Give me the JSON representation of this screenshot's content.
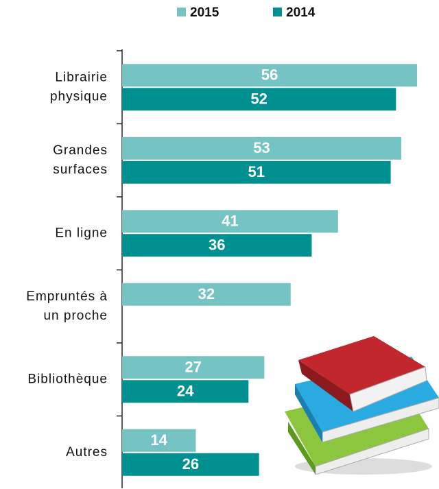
{
  "chart_data": {
    "type": "barh",
    "categories": [
      "Librairie\nphysique",
      "Grandes\nsurfaces",
      "En ligne",
      "Empruntés à\nun proche",
      "Bibliothèque",
      "Autres"
    ],
    "series": [
      {
        "name": "2015",
        "color": "#76c3c3",
        "values": [
          56,
          53,
          41,
          32,
          27,
          14
        ]
      },
      {
        "name": "2014",
        "color": "#00908f",
        "values": [
          52,
          51,
          36,
          null,
          24,
          26
        ]
      }
    ],
    "xlim": [
      0,
      56
    ],
    "legend": "top"
  }
}
